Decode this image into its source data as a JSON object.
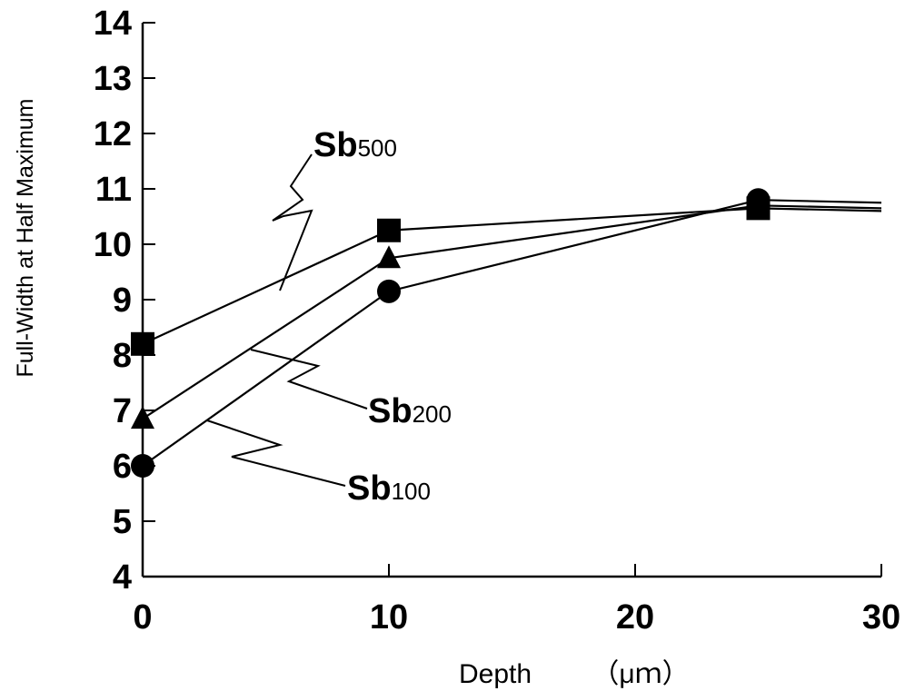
{
  "chart_data": {
    "type": "line",
    "title": "",
    "xlabel": "Depth",
    "xlabel_unit": "（μｍ）",
    "ylabel": "Full-Width at Half Maximum",
    "xlim": [
      0,
      30
    ],
    "ylim": [
      4,
      14
    ],
    "x_ticks": [
      "0",
      "10",
      "20",
      "30"
    ],
    "y_ticks": [
      "4",
      "5",
      "6",
      "7",
      "8",
      "9",
      "10",
      "11",
      "12",
      "13",
      "14"
    ],
    "grid": false,
    "series": [
      {
        "name": "Sb500",
        "name_base": "Sb",
        "name_sub": "500",
        "marker": "square",
        "x": [
          0,
          10,
          25,
          30
        ],
        "y": [
          8.2,
          10.25,
          10.65,
          10.6
        ]
      },
      {
        "name": "Sb200",
        "name_base": "Sb",
        "name_sub": "200",
        "marker": "triangle",
        "x": [
          0,
          10,
          25,
          30
        ],
        "y": [
          6.85,
          9.75,
          10.7,
          10.65
        ]
      },
      {
        "name": "Sb100",
        "name_base": "Sb",
        "name_sub": "100",
        "marker": "circle",
        "x": [
          0,
          10,
          25,
          30
        ],
        "y": [
          6.0,
          9.15,
          10.8,
          10.75
        ]
      }
    ],
    "colors": {
      "line": "#000000",
      "marker": "#000000"
    }
  }
}
